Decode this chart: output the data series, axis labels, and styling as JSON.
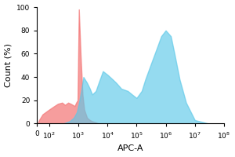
{
  "xlabel": "APC-A",
  "ylabel": "Count (%)",
  "ylim": [
    0,
    100
  ],
  "yticks": [
    0,
    20,
    40,
    60,
    80,
    100
  ],
  "xtick_values": [
    0,
    100,
    1000,
    10000,
    100000,
    1000000,
    10000000,
    100000000
  ],
  "red_color": "#F47C7C",
  "blue_color": "#5CC8E8",
  "red_alpha": 0.75,
  "blue_alpha": 0.65,
  "background_color": "#FFFFFF",
  "red_x": [
    10,
    30,
    60,
    100,
    150,
    200,
    280,
    350,
    450,
    550,
    650,
    750,
    850,
    950,
    1050,
    1200,
    1400,
    1600,
    2000,
    2500,
    3000,
    4000,
    5000,
    8000,
    15000,
    50000
  ],
  "red_y": [
    0,
    3,
    8,
    12,
    15,
    17,
    18,
    16,
    18,
    17,
    16,
    15,
    18,
    20,
    98,
    60,
    25,
    12,
    5,
    3,
    2,
    1,
    0,
    0,
    0,
    0
  ],
  "blue_x": [
    300,
    500,
    700,
    900,
    1100,
    1300,
    1500,
    2000,
    2500,
    3000,
    4000,
    5000,
    7000,
    10000,
    15000,
    20000,
    30000,
    50000,
    70000,
    100000,
    150000,
    200000,
    300000,
    500000,
    700000,
    1000000,
    1500000,
    2000000,
    3000000,
    5000000,
    10000000,
    30000000
  ],
  "blue_y": [
    0,
    2,
    5,
    10,
    20,
    30,
    40,
    35,
    30,
    25,
    28,
    35,
    45,
    42,
    38,
    35,
    30,
    28,
    25,
    22,
    28,
    38,
    50,
    65,
    75,
    80,
    75,
    60,
    38,
    18,
    3,
    0
  ],
  "linthresh": 50,
  "linscale": 0.1
}
